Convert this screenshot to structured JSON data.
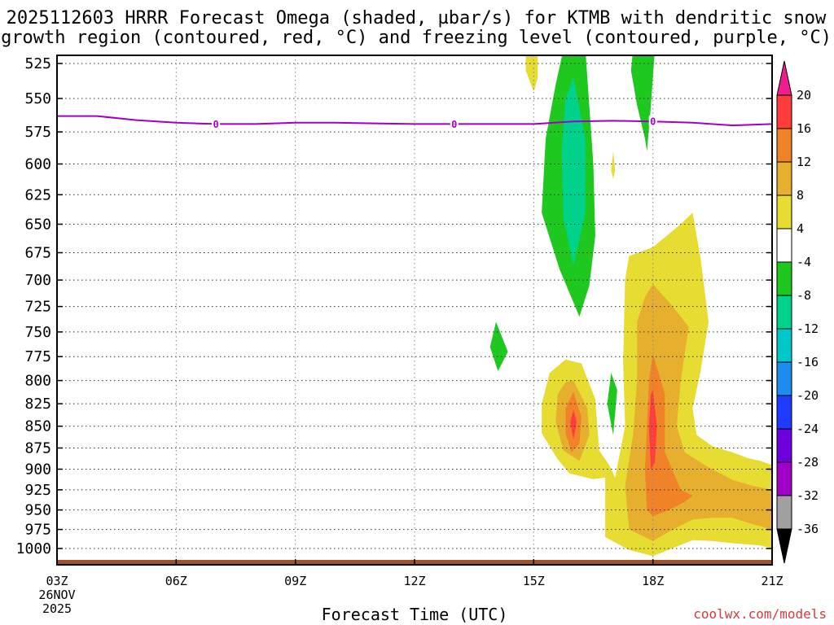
{
  "chart_data": {
    "type": "heatmap",
    "title_line1": "2025112603 HRRR Forecast Omega (shaded, µbar/s) for KTMB with dendritic snow",
    "title_line2": "growth region (contoured, red, °C) and freezing level (contoured, purple, °C)",
    "xlabel": "Forecast Time (UTC)",
    "x_ticks": [
      "03Z",
      "06Z",
      "09Z",
      "12Z",
      "15Z",
      "18Z",
      "21Z"
    ],
    "x_first_tick_extra": [
      "26NOV",
      "2025"
    ],
    "y_ticks": [
      525,
      550,
      575,
      600,
      625,
      650,
      675,
      700,
      725,
      750,
      775,
      800,
      825,
      850,
      875,
      900,
      925,
      950,
      975,
      1000
    ],
    "ylim": [
      1000,
      525
    ],
    "grid": true,
    "colorbar": {
      "labels": [
        "20",
        "16",
        "12",
        "8",
        "4",
        "-4",
        "-8",
        "-12",
        "-16",
        "-20",
        "-24",
        "-28",
        "-32",
        "-36"
      ],
      "bands": [
        {
          "lo": 16,
          "hi": 20,
          "color": "#ff3c3c"
        },
        {
          "lo": 12,
          "hi": 16,
          "color": "#f08228"
        },
        {
          "lo": 8,
          "hi": 12,
          "color": "#e6af2d"
        },
        {
          "lo": 4,
          "hi": 8,
          "color": "#e6dc32"
        },
        {
          "lo": -4,
          "hi": 4,
          "color": "#ffffff"
        },
        {
          "lo": -8,
          "hi": -4,
          "color": "#1ec81e"
        },
        {
          "lo": -12,
          "hi": -8,
          "color": "#00d28c"
        },
        {
          "lo": -16,
          "hi": -12,
          "color": "#00c8c8"
        },
        {
          "lo": -20,
          "hi": -16,
          "color": "#1e8cf0"
        },
        {
          "lo": -24,
          "hi": -20,
          "color": "#1e3cff"
        },
        {
          "lo": -28,
          "hi": -24,
          "color": "#6e00dc"
        },
        {
          "lo": -32,
          "hi": -28,
          "color": "#a000c8"
        },
        {
          "lo": -36,
          "hi": -32,
          "color": "#a0a0a0"
        }
      ],
      "over_color": "#f01e8c",
      "under_color": "#000000"
    },
    "freezing_level": {
      "label": "0",
      "color": "#a000c8",
      "points": [
        [
          3,
          563
        ],
        [
          4,
          563
        ],
        [
          5,
          566
        ],
        [
          6,
          568
        ],
        [
          7,
          569
        ],
        [
          8,
          569
        ],
        [
          9,
          568
        ],
        [
          10,
          568
        ],
        [
          11,
          568.5
        ],
        [
          12,
          569
        ],
        [
          13,
          569
        ],
        [
          14,
          569
        ],
        [
          15,
          569
        ],
        [
          16,
          567
        ],
        [
          17,
          566.5
        ],
        [
          18,
          567
        ],
        [
          19,
          568
        ],
        [
          20,
          570
        ],
        [
          21,
          569
        ]
      ],
      "label_positions": [
        7,
        13,
        18
      ]
    },
    "omega_regions": [
      {
        "value": 6,
        "color": "#e6dc32",
        "points": [
          [
            14.8,
            515
          ],
          [
            15.1,
            515
          ],
          [
            15.1,
            535
          ],
          [
            15.0,
            545
          ],
          [
            14.8,
            530
          ]
        ]
      },
      {
        "value": 6,
        "color": "#e6dc32",
        "points": [
          [
            17.0,
            590
          ],
          [
            16.95,
            605
          ],
          [
            17.0,
            612
          ],
          [
            17.05,
            605
          ]
        ]
      },
      {
        "value": -6,
        "color": "#1ec81e",
        "points": [
          [
            15.75,
            515
          ],
          [
            16.3,
            515
          ],
          [
            16.5,
            600
          ],
          [
            16.55,
            660
          ],
          [
            16.4,
            705
          ],
          [
            16.15,
            735
          ],
          [
            15.65,
            690
          ],
          [
            15.2,
            640
          ],
          [
            15.3,
            580
          ],
          [
            15.55,
            540
          ]
        ]
      },
      {
        "value": -10,
        "color": "#00d28c",
        "points": [
          [
            16.0,
            535
          ],
          [
            16.3,
            580
          ],
          [
            16.3,
            640
          ],
          [
            16.0,
            687
          ],
          [
            15.75,
            645
          ],
          [
            15.7,
            590
          ],
          [
            15.8,
            550
          ]
        ]
      },
      {
        "value": -6,
        "color": "#1ec81e",
        "points": [
          [
            17.5,
            515
          ],
          [
            18.05,
            515
          ],
          [
            17.95,
            555
          ],
          [
            17.85,
            590
          ],
          [
            17.8,
            580
          ],
          [
            17.6,
            555
          ],
          [
            17.45,
            530
          ]
        ]
      },
      {
        "value": -6,
        "color": "#1ec81e",
        "points": [
          [
            14.05,
            740
          ],
          [
            14.35,
            770
          ],
          [
            14.1,
            790
          ],
          [
            13.9,
            765
          ]
        ]
      },
      {
        "value": -6,
        "color": "#1ec81e",
        "points": [
          [
            16.95,
            792
          ],
          [
            17.1,
            810
          ],
          [
            17.0,
            860
          ],
          [
            16.85,
            825
          ]
        ]
      },
      {
        "value": 6,
        "color": "#e6dc32",
        "points": [
          [
            17.4,
            678
          ],
          [
            18.0,
            670
          ],
          [
            18.7,
            650
          ],
          [
            19.0,
            640
          ],
          [
            19.2,
            680
          ],
          [
            19.4,
            740
          ],
          [
            19.2,
            790
          ],
          [
            19.0,
            830
          ],
          [
            19.1,
            860
          ],
          [
            19.5,
            873
          ],
          [
            20.0,
            880
          ],
          [
            20.4,
            887
          ],
          [
            20.7,
            890
          ],
          [
            21.0,
            895
          ],
          [
            21.0,
            1000
          ],
          [
            20.7,
            996
          ],
          [
            20.0,
            993
          ],
          [
            19.5,
            990
          ],
          [
            19.0,
            989
          ],
          [
            18.0,
            1010
          ],
          [
            17.4,
            1002
          ],
          [
            16.8,
            985
          ],
          [
            16.8,
            910
          ],
          [
            16.5,
            912
          ],
          [
            15.9,
            905
          ],
          [
            15.6,
            888
          ],
          [
            15.2,
            858
          ],
          [
            15.2,
            825
          ],
          [
            15.4,
            792
          ],
          [
            15.8,
            778
          ],
          [
            16.2,
            782
          ],
          [
            16.55,
            820
          ],
          [
            16.6,
            850
          ],
          [
            16.65,
            878
          ],
          [
            16.9,
            895
          ],
          [
            17.05,
            910
          ],
          [
            17.3,
            850
          ],
          [
            17.25,
            780
          ],
          [
            17.3,
            700
          ]
        ]
      },
      {
        "value": 10,
        "color": "#e6af2d",
        "points": [
          [
            18.0,
            704
          ],
          [
            18.5,
            725
          ],
          [
            18.9,
            745
          ],
          [
            18.7,
            800
          ],
          [
            18.6,
            850
          ],
          [
            18.8,
            880
          ],
          [
            19.3,
            895
          ],
          [
            20.0,
            913
          ],
          [
            20.5,
            920
          ],
          [
            21.0,
            925
          ],
          [
            21.0,
            975
          ],
          [
            20.5,
            968
          ],
          [
            20.0,
            960
          ],
          [
            19.5,
            960
          ],
          [
            19.0,
            962
          ],
          [
            18.5,
            975
          ],
          [
            18.0,
            990
          ],
          [
            17.4,
            975
          ],
          [
            17.3,
            920
          ],
          [
            17.5,
            860
          ],
          [
            17.6,
            800
          ],
          [
            17.6,
            740
          ],
          [
            17.8,
            716
          ]
        ]
      },
      {
        "value": 10,
        "color": "#e6af2d",
        "points": [
          [
            16.0,
            800
          ],
          [
            16.35,
            830
          ],
          [
            16.4,
            860
          ],
          [
            16.15,
            890
          ],
          [
            15.75,
            878
          ],
          [
            15.55,
            845
          ],
          [
            15.6,
            815
          ],
          [
            15.8,
            802
          ]
        ]
      },
      {
        "value": 14,
        "color": "#f08228",
        "points": [
          [
            18.0,
            772
          ],
          [
            18.3,
            815
          ],
          [
            18.3,
            880
          ],
          [
            18.7,
            925
          ],
          [
            19.0,
            932
          ],
          [
            18.8,
            940
          ],
          [
            18.4,
            950
          ],
          [
            18.0,
            958
          ],
          [
            17.85,
            950
          ],
          [
            17.8,
            900
          ],
          [
            17.85,
            850
          ],
          [
            17.9,
            800
          ]
        ]
      },
      {
        "value": 14,
        "color": "#f08228",
        "points": [
          [
            16.0,
            812
          ],
          [
            16.2,
            840
          ],
          [
            16.15,
            870
          ],
          [
            15.95,
            880
          ],
          [
            15.8,
            858
          ],
          [
            15.8,
            830
          ]
        ]
      },
      {
        "value": 18,
        "color": "#ff3c3c",
        "points": [
          [
            18.0,
            810
          ],
          [
            18.1,
            850
          ],
          [
            18.05,
            892
          ],
          [
            17.95,
            900
          ],
          [
            17.9,
            850
          ],
          [
            17.95,
            815
          ]
        ]
      },
      {
        "value": 18,
        "color": "#ff3c3c",
        "points": [
          [
            16.0,
            832
          ],
          [
            16.08,
            845
          ],
          [
            16.0,
            865
          ],
          [
            15.92,
            845
          ]
        ]
      }
    ]
  },
  "credit": "coolwx.com/models"
}
